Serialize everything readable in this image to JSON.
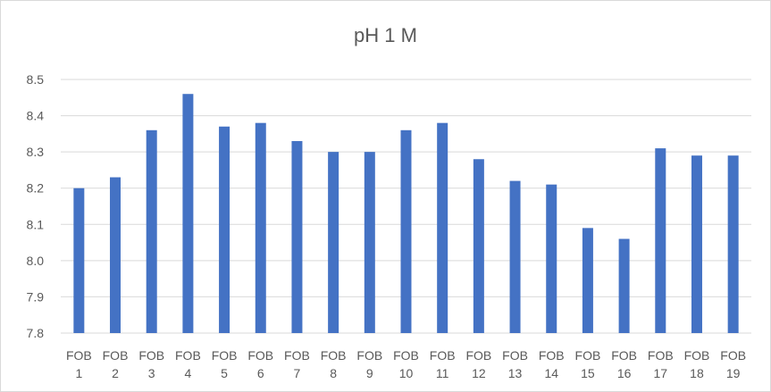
{
  "chart_data": {
    "type": "bar",
    "title": "pH 1 M",
    "xlabel": "",
    "ylabel": "",
    "ylim": [
      7.8,
      8.5
    ],
    "yticks": [
      "7.8",
      "7.9",
      "8.0",
      "8.1",
      "8.2",
      "8.3",
      "8.4",
      "8.5"
    ],
    "grid": true,
    "legend": "none",
    "bar_color": "#4472c4",
    "categories": [
      [
        "FOB",
        "1"
      ],
      [
        "FOB",
        "2"
      ],
      [
        "FOB",
        "3"
      ],
      [
        "FOB",
        "4"
      ],
      [
        "FOB",
        "5"
      ],
      [
        "FOB",
        "6"
      ],
      [
        "FOB",
        "7"
      ],
      [
        "FOB",
        "8"
      ],
      [
        "FOB",
        "9"
      ],
      [
        "FOB",
        "10"
      ],
      [
        "FOB",
        "11"
      ],
      [
        "FOB",
        "12"
      ],
      [
        "FOB",
        "13"
      ],
      [
        "FOB",
        "14"
      ],
      [
        "FOB",
        "15"
      ],
      [
        "FOB",
        "16"
      ],
      [
        "FOB",
        "17"
      ],
      [
        "FOB",
        "18"
      ],
      [
        "FOB",
        "19"
      ]
    ],
    "values": [
      8.2,
      8.23,
      8.36,
      8.46,
      8.37,
      8.38,
      8.33,
      8.3,
      8.3,
      8.36,
      8.38,
      8.28,
      8.22,
      8.21,
      8.09,
      8.06,
      8.31,
      8.29,
      8.29
    ]
  }
}
